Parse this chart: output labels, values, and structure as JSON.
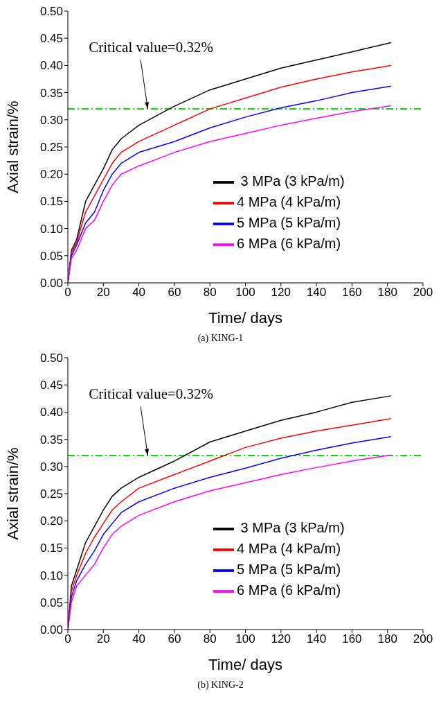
{
  "chart_data": [
    {
      "type": "line",
      "title": "(a) KING-1",
      "xlabel": "Time/ days",
      "ylabel": "Axial strain/%",
      "x": [
        0,
        2,
        5,
        10,
        15,
        20,
        25,
        30,
        40,
        60,
        80,
        100,
        120,
        140,
        160,
        182
      ],
      "series": [
        {
          "name": " 3 MPa (3 kPa/m)",
          "color": "#000000",
          "values": [
            0,
            0.06,
            0.08,
            0.15,
            0.18,
            0.21,
            0.245,
            0.265,
            0.29,
            0.325,
            0.355,
            0.375,
            0.395,
            0.41,
            0.425,
            0.442
          ]
        },
        {
          "name": "4 MPa (4 kPa/m)",
          "color": "#ff0000",
          "values": [
            0,
            0.055,
            0.075,
            0.13,
            0.16,
            0.19,
            0.22,
            0.24,
            0.26,
            0.29,
            0.32,
            0.34,
            0.36,
            0.375,
            0.388,
            0.4
          ]
        },
        {
          "name": "5 MPa (5 kPa/m)",
          "color": "#0000ff",
          "values": [
            0,
            0.05,
            0.07,
            0.11,
            0.13,
            0.17,
            0.2,
            0.22,
            0.24,
            0.26,
            0.285,
            0.305,
            0.322,
            0.335,
            0.35,
            0.362
          ]
        },
        {
          "name": "6 MPa (6 kPa/m)",
          "color": "#ff00ff",
          "values": [
            0,
            0.045,
            0.06,
            0.1,
            0.115,
            0.15,
            0.18,
            0.2,
            0.215,
            0.24,
            0.26,
            0.275,
            0.29,
            0.303,
            0.315,
            0.326
          ]
        }
      ],
      "xlim": [
        0,
        200
      ],
      "xticks": [
        0,
        20,
        40,
        60,
        80,
        100,
        120,
        140,
        160,
        180,
        200
      ],
      "ylim": [
        0,
        0.5
      ],
      "yticks": [
        {
          "value": 0,
          "label": "0.00"
        },
        {
          "value": 0.05,
          "label": "0.05"
        },
        {
          "value": 0.1,
          "label": "0.10"
        },
        {
          "value": 0.15,
          "label": "0.15"
        },
        {
          "value": 0.2,
          "label": "0.20"
        },
        {
          "value": 0.25,
          "label": "0.25"
        },
        {
          "value": 0.3,
          "label": "0.30"
        },
        {
          "value": 0.35,
          "label": "0.35"
        },
        {
          "value": 0.4,
          "label": "0.40"
        },
        {
          "value": 0.45,
          "label": "0.45"
        },
        {
          "value": 0.5,
          "label": "0.50"
        }
      ],
      "ref_lines": [
        {
          "axis": "y",
          "value": 0.32,
          "color": "#00e000",
          "line_style": "dashed"
        }
      ],
      "annotations": [
        {
          "text": "Critical value=0.32%",
          "x": 45,
          "y": 0.32
        }
      ],
      "legend": "bottom right",
      "grid": false,
      "marker": "none",
      "line_style": "solid"
    },
    {
      "type": "line",
      "title": "(b) KING-2",
      "xlabel": "Time/ days",
      "ylabel": "Axial strain/%",
      "x": [
        0,
        2,
        5,
        10,
        15,
        20,
        25,
        30,
        40,
        60,
        80,
        100,
        120,
        140,
        160,
        182
      ],
      "series": [
        {
          "name": " 3 MPa (3 kPa/m)",
          "color": "#000000",
          "values": [
            0,
            0.08,
            0.11,
            0.16,
            0.19,
            0.22,
            0.245,
            0.26,
            0.28,
            0.31,
            0.345,
            0.365,
            0.385,
            0.4,
            0.418,
            0.43
          ]
        },
        {
          "name": "4 MPa (4 kPa/m)",
          "color": "#ff0000",
          "values": [
            0,
            0.07,
            0.1,
            0.14,
            0.17,
            0.195,
            0.22,
            0.235,
            0.26,
            0.285,
            0.31,
            0.335,
            0.352,
            0.365,
            0.376,
            0.388
          ]
        },
        {
          "name": "5 MPa (5 kPa/m)",
          "color": "#0000ff",
          "values": [
            0,
            0.06,
            0.09,
            0.12,
            0.145,
            0.175,
            0.195,
            0.215,
            0.235,
            0.26,
            0.28,
            0.297,
            0.315,
            0.33,
            0.343,
            0.355
          ]
        },
        {
          "name": "6 MPa (6 kPa/m)",
          "color": "#ff00ff",
          "values": [
            0,
            0.05,
            0.08,
            0.1,
            0.12,
            0.15,
            0.175,
            0.19,
            0.21,
            0.235,
            0.255,
            0.27,
            0.285,
            0.298,
            0.31,
            0.321
          ]
        }
      ],
      "xlim": [
        0,
        200
      ],
      "xticks": [
        0,
        20,
        40,
        60,
        80,
        100,
        120,
        140,
        160,
        180,
        200
      ],
      "ylim": [
        0,
        0.5
      ],
      "yticks": [
        {
          "value": 0,
          "label": "0.00"
        },
        {
          "value": 0.05,
          "label": "0.05"
        },
        {
          "value": 0.1,
          "label": "0.10"
        },
        {
          "value": 0.15,
          "label": "0.15"
        },
        {
          "value": 0.2,
          "label": "0.20"
        },
        {
          "value": 0.25,
          "label": "0.25"
        },
        {
          "value": 0.3,
          "label": "0.30"
        },
        {
          "value": 0.35,
          "label": "0.35"
        },
        {
          "value": 0.4,
          "label": "0.40"
        },
        {
          "value": 0.45,
          "label": "0.45"
        },
        {
          "value": 0.5,
          "label": "0.50"
        }
      ],
      "ref_lines": [
        {
          "axis": "y",
          "value": 0.32,
          "color": "#00e000",
          "line_style": "dashed"
        }
      ],
      "annotations": [
        {
          "text": "Critical value=0.32%",
          "x": 45,
          "y": 0.32
        }
      ],
      "legend": "bottom right",
      "grid": false,
      "marker": "none",
      "line_style": "solid"
    }
  ]
}
